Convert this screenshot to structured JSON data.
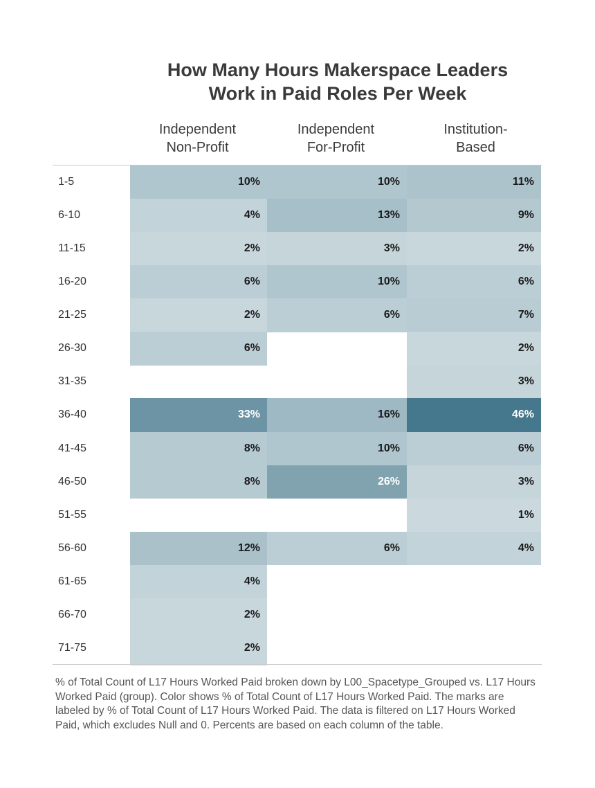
{
  "title_line1": "How Many Hours Makerspace Leaders",
  "title_line2": "Work in Paid Roles Per Week",
  "chart_data": {
    "type": "heatmap",
    "title": "How Many Hours Makerspace Leaders Work in Paid Roles Per Week",
    "columns": [
      {
        "line1": "Independent",
        "line2": "Non-Profit"
      },
      {
        "line1": "Independent",
        "line2": "For-Profit"
      },
      {
        "line1": "Institution-",
        "line2": "Based"
      }
    ],
    "rows": [
      "1-5",
      "6-10",
      "11-15",
      "16-20",
      "21-25",
      "26-30",
      "31-35",
      "36-40",
      "41-45",
      "46-50",
      "51-55",
      "56-60",
      "61-65",
      "66-70",
      "71-75"
    ],
    "values": [
      [
        10,
        10,
        11
      ],
      [
        4,
        13,
        9
      ],
      [
        2,
        3,
        2
      ],
      [
        6,
        10,
        6
      ],
      [
        2,
        6,
        7
      ],
      [
        6,
        null,
        2
      ],
      [
        null,
        null,
        3
      ],
      [
        33,
        16,
        46
      ],
      [
        8,
        10,
        6
      ],
      [
        8,
        26,
        3
      ],
      [
        null,
        null,
        1
      ],
      [
        12,
        6,
        4
      ],
      [
        4,
        null,
        null
      ],
      [
        2,
        null,
        null
      ],
      [
        2,
        null,
        null
      ]
    ],
    "value_suffix": "%",
    "color_low": "#cbd9de",
    "color_high": "#45788c"
  },
  "footnote": "% of Total Count of L17 Hours Worked Paid broken down by L00_Spacetype_Grouped vs. L17 Hours Worked Paid (group).  Color shows % of Total Count of L17 Hours Worked Paid.  The marks are labeled by % of Total Count of L17 Hours Worked Paid. The data is filtered on L17 Hours Worked Paid, which excludes Null and 0. Percents are based on each column of the table."
}
